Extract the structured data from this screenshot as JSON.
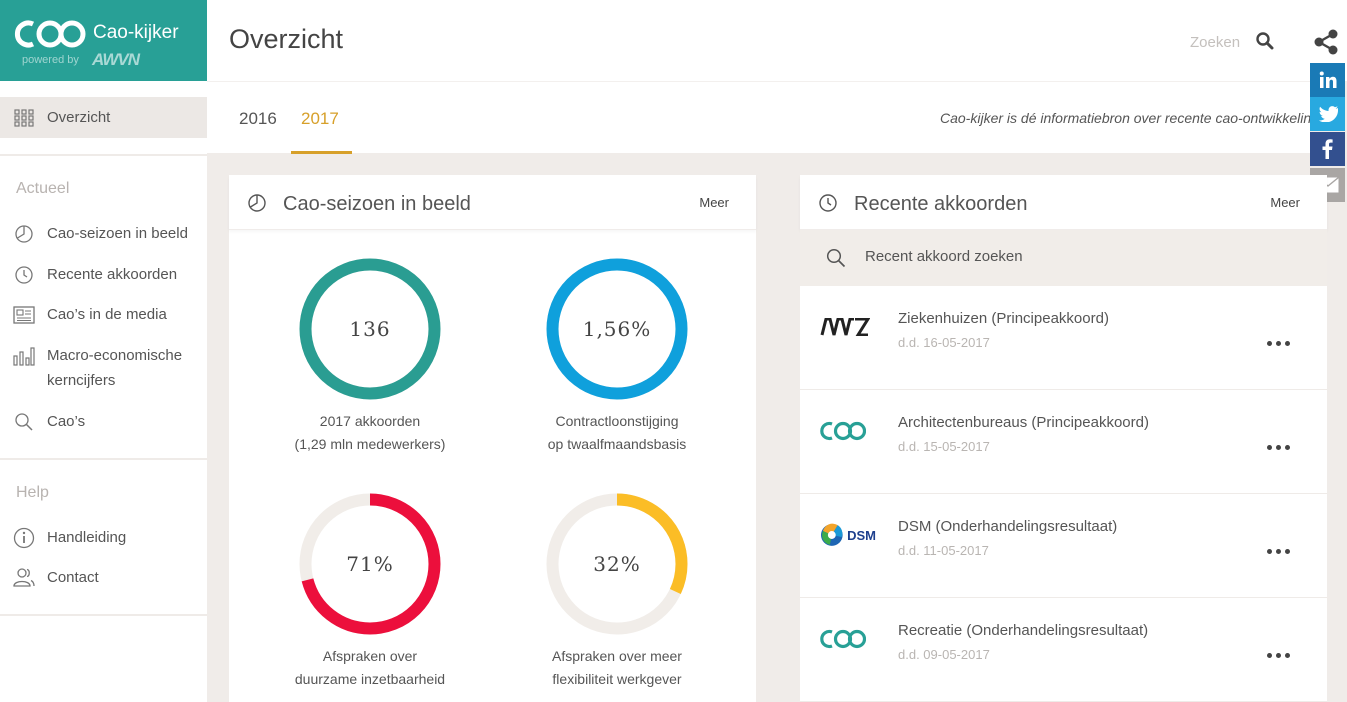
{
  "app": {
    "name": "Cao-kijker",
    "powered_by": "powered by",
    "brand": "AWVN"
  },
  "header": {
    "page_title": "Overzicht",
    "search_label": "Zoeken"
  },
  "sidebar": {
    "active_item": {
      "label": "Overzicht",
      "icon": "grid-icon"
    },
    "sections": [
      {
        "title": "Actueel",
        "items": [
          {
            "label": "Cao-seizoen in beeld",
            "icon": "pie-chart-icon"
          },
          {
            "label": "Recente akkoorden",
            "icon": "clock-icon"
          },
          {
            "label": "Cao’s in de media",
            "icon": "newspaper-icon"
          },
          {
            "label": "Macro-economische kerncijfers",
            "icon": "bar-chart-icon"
          },
          {
            "label": "Cao’s",
            "icon": "search-icon"
          }
        ]
      },
      {
        "title": "Help",
        "items": [
          {
            "label": "Handleiding",
            "icon": "info-icon"
          },
          {
            "label": "Contact",
            "icon": "users-icon"
          }
        ]
      }
    ]
  },
  "years": {
    "tabs": [
      "2016",
      "2017"
    ],
    "selected": "2017",
    "tagline": "Cao-kijker is dé informatiebron over recente cao-ontwikkelingen"
  },
  "social": [
    "linkedin-icon",
    "twitter-icon",
    "facebook-icon",
    "email-icon"
  ],
  "season": {
    "title": "Cao-seizoen in beeld",
    "more": "Meer",
    "stats": [
      {
        "value": "136",
        "fraction": 1.0,
        "color": "#2a9d92",
        "label_1": "2017 akkoorden",
        "label_2": "(1,29 mln medewerkers)"
      },
      {
        "value": "1,56%",
        "fraction": 1.0,
        "color": "#0fa0dc",
        "label_1": "Contractloonstijging",
        "label_2": "op twaalfmaandsbasis"
      },
      {
        "value": "71%",
        "fraction": 0.71,
        "color": "#ec0f3c",
        "label_1": "Afspraken over",
        "label_2": "duurzame inzetbaarheid"
      },
      {
        "value": "32%",
        "fraction": 0.32,
        "color": "#fbbd26",
        "label_1": "Afspraken over meer",
        "label_2": "flexibiliteit werkgever"
      }
    ]
  },
  "recent": {
    "title": "Recente akkoorden",
    "more": "Meer",
    "search_placeholder": "Recent akkoord zoeken",
    "items": [
      {
        "title": "Ziekenhuizen (Principeakkoord)",
        "date": "d.d. 16-05-2017",
        "logo": "nvz"
      },
      {
        "title": "Architectenbureaus (Principeakkoord)",
        "date": "d.d. 15-05-2017",
        "logo": "cao"
      },
      {
        "title": "DSM (Onderhandelingsresultaat)",
        "date": "d.d. 11-05-2017",
        "logo": "dsm",
        "logo_text": "DSM"
      },
      {
        "title": "Recreatie (Onderhandelingsresultaat)",
        "date": "d.d. 09-05-2017",
        "logo": "cao"
      }
    ]
  }
}
